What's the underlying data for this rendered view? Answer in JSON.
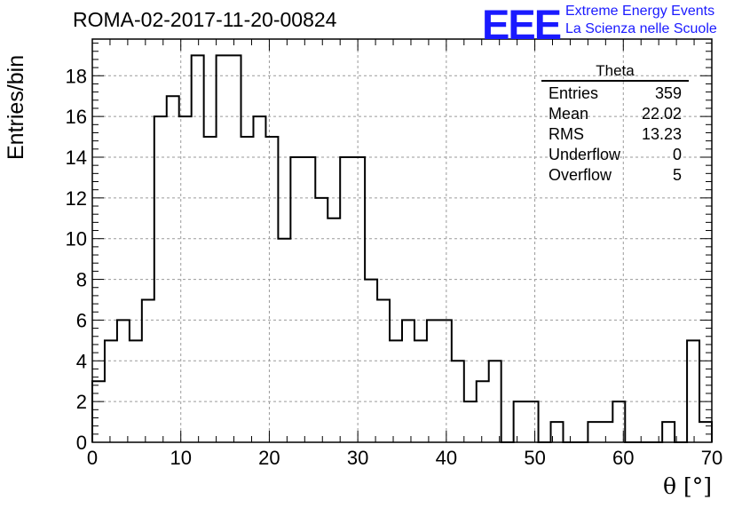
{
  "header": {
    "title": "ROMA-02-2017-11-20-00824",
    "logo": "EEE",
    "logo_line1": "Extreme Energy Events",
    "logo_line2": "La Scienza nelle Scuole"
  },
  "stats": {
    "title": "Theta",
    "rows": [
      {
        "label": "Entries",
        "value": "359"
      },
      {
        "label": "Mean",
        "value": "22.02"
      },
      {
        "label": "RMS",
        "value": "13.23"
      },
      {
        "label": "Underflow",
        "value": "0"
      },
      {
        "label": "Overflow",
        "value": "5"
      }
    ]
  },
  "colors": {
    "line": "#000000",
    "grid": "#9a9a9a",
    "logo": "#1a1aff"
  },
  "chart_data": {
    "type": "histogram",
    "title": "ROMA-02-2017-11-20-00824",
    "xlabel": "θ [°]",
    "ylabel": "Entries/bin",
    "xlim": [
      0,
      70
    ],
    "ylim": [
      0,
      19.8
    ],
    "grid": true,
    "legend": "top-right",
    "x_ticks": [
      0,
      10,
      20,
      30,
      40,
      50,
      60,
      70
    ],
    "y_ticks": [
      0,
      2,
      4,
      6,
      8,
      10,
      12,
      14,
      16,
      18
    ],
    "bin_edges": [
      0,
      1.4,
      2.8,
      4.2,
      5.6,
      7.0,
      8.4,
      9.8,
      11.2,
      12.6,
      14.0,
      15.4,
      16.8,
      18.2,
      19.6,
      21.0,
      22.4,
      23.8,
      25.2,
      26.6,
      28.0,
      29.4,
      30.8,
      32.2,
      33.6,
      35.0,
      36.4,
      37.8,
      39.2,
      40.6,
      42.0,
      43.4,
      44.8,
      46.2,
      47.6,
      49.0,
      50.4,
      51.8,
      53.2,
      54.6,
      56.0,
      57.4,
      58.8,
      60.2,
      61.6,
      63.0,
      64.4,
      65.8,
      67.2,
      68.6,
      70.0
    ],
    "values": [
      3,
      5,
      6,
      5,
      7,
      16,
      17,
      16,
      19,
      15,
      19,
      19,
      15,
      16,
      15,
      10,
      14,
      14,
      12,
      11,
      14,
      14,
      8,
      7,
      5,
      6,
      5,
      6,
      6,
      4,
      2,
      3,
      4,
      0,
      2,
      2,
      0,
      1,
      0,
      0,
      1,
      1,
      2,
      0,
      0,
      0,
      1,
      0,
      5,
      1
    ]
  }
}
